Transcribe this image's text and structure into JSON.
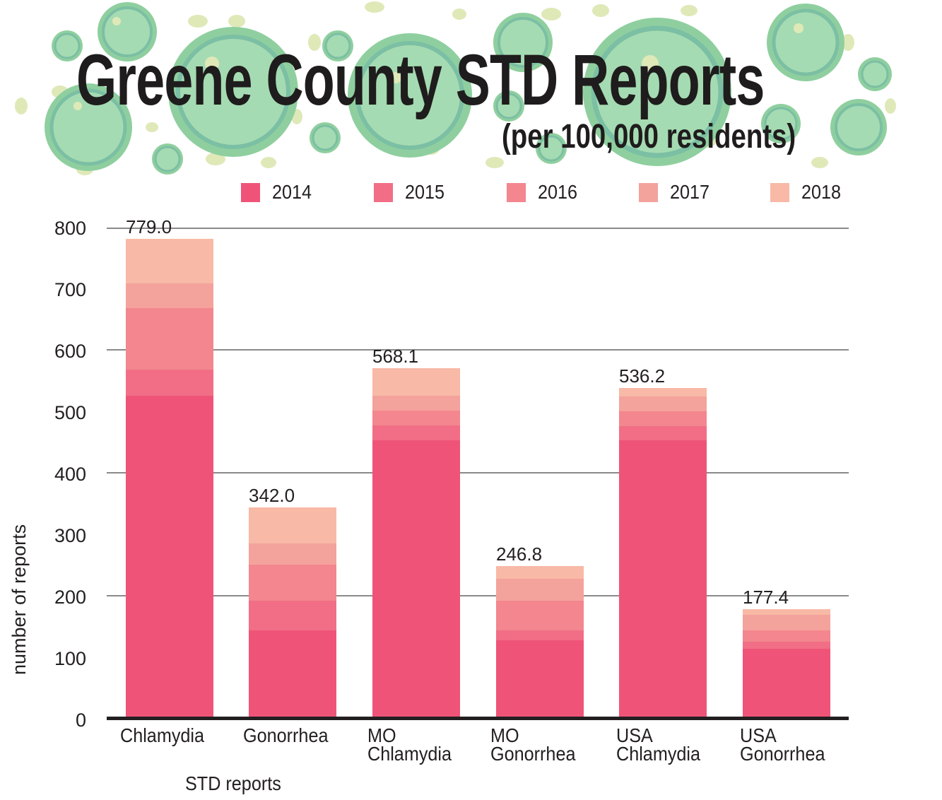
{
  "header": {
    "title": "Greene County STD Reports",
    "subtitle": "(per 100,000 residents)",
    "decoration": "green-virus-cells-icon"
  },
  "legend": {
    "items": [
      {
        "label": "2014",
        "color": "#ef5478"
      },
      {
        "label": "2015",
        "color": "#f16e86"
      },
      {
        "label": "2016",
        "color": "#f3868e"
      },
      {
        "label": "2017",
        "color": "#f4a29c"
      },
      {
        "label": "2018",
        "color": "#f8b9a6"
      }
    ]
  },
  "axes": {
    "y_title": "number of reports",
    "x_title": "STD reports",
    "y_ticks": [
      "800",
      "700",
      "600",
      "500",
      "400",
      "300",
      "200",
      "100",
      "0"
    ]
  },
  "chart_data": {
    "type": "bar",
    "stacked": "overlapping cumulative (each year's value drawn from 0, later years behind)",
    "title": "Greene County STD Reports",
    "subtitle": "(per 100,000 residents)",
    "xlabel": "STD reports",
    "ylabel": "number of reports",
    "ylim": [
      0,
      800
    ],
    "yticks": [
      0,
      100,
      200,
      300,
      400,
      500,
      600,
      700,
      800
    ],
    "gridlines": [
      200,
      400,
      600,
      800
    ],
    "legend_position": "top",
    "categories": [
      "Chlamydia",
      "Gonorrhea",
      "MO Chlamydia",
      "MO Gonorrhea",
      "USA Chlamydia",
      "USA Gonorrhea"
    ],
    "series": [
      {
        "name": "2014",
        "color": "#ef5478",
        "values": [
          524,
          143,
          452,
          126,
          452,
          113
        ]
      },
      {
        "name": "2015",
        "color": "#f16e86",
        "values": [
          566,
          191,
          476,
          143,
          475,
          124
        ]
      },
      {
        "name": "2016",
        "color": "#f3868e",
        "values": [
          666,
          249,
          500,
          191,
          499,
          143
        ]
      },
      {
        "name": "2017",
        "color": "#f4a29c",
        "values": [
          707,
          284,
          524,
          226,
          523,
          168
        ]
      },
      {
        "name": "2018",
        "color": "#f8b9a6",
        "values": [
          779.0,
          342.0,
          568.1,
          246.8,
          536.2,
          177.4
        ]
      }
    ],
    "data_labels": [
      "779.0",
      "342.0",
      "568.1",
      "246.8",
      "536.2",
      "177.4"
    ]
  },
  "bars": [
    {
      "label": "Chlamydia",
      "total": "779.0"
    },
    {
      "label": "Gonorrhea",
      "total": "342.0"
    },
    {
      "label": "MO\nChlamydia",
      "total": "568.1"
    },
    {
      "label": "MO\nGonorrhea",
      "total": "246.8"
    },
    {
      "label": "USA\nChlamydia",
      "total": "536.2"
    },
    {
      "label": "USA\nGonorrhea",
      "total": "177.4"
    }
  ]
}
